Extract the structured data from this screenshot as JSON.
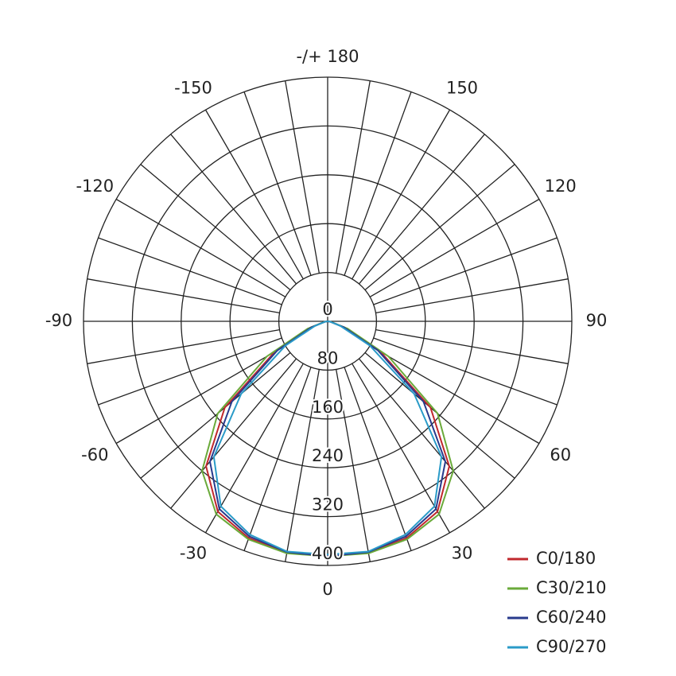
{
  "chart_data": {
    "type": "polar",
    "x": [
      -90,
      -80,
      -70,
      -60,
      -50,
      -40,
      -30,
      -20,
      -10,
      0,
      10,
      20,
      30,
      40,
      50,
      60,
      70,
      80,
      90
    ],
    "rlim": [
      0,
      400
    ],
    "rticks": [
      0,
      80,
      160,
      240,
      320,
      400
    ],
    "angle_ticks": [
      -150,
      -120,
      -90,
      -60,
      -30,
      0,
      30,
      60,
      90,
      120,
      150,
      {
        "value": 180,
        "label": "-/+ 180"
      }
    ],
    "legend": "lower right",
    "series": [
      {
        "name": "C0/180",
        "color": "#c0282d",
        "values": [
          0,
          5,
          30,
          100,
          220,
          310,
          360,
          378,
          385,
          384,
          385,
          378,
          360,
          310,
          220,
          100,
          30,
          5,
          0
        ]
      },
      {
        "name": "C30/210",
        "color": "#6aaa3a",
        "values": [
          0,
          6,
          35,
          115,
          235,
          320,
          365,
          380,
          386,
          385,
          386,
          380,
          365,
          320,
          235,
          115,
          35,
          6,
          0
        ]
      },
      {
        "name": "C60/240",
        "color": "#283a8c",
        "values": [
          0,
          5,
          28,
          95,
          205,
          300,
          355,
          375,
          384,
          385,
          384,
          375,
          355,
          300,
          205,
          95,
          28,
          5,
          0
        ]
      },
      {
        "name": "C90/270",
        "color": "#2a9bc8",
        "values": [
          0,
          4,
          22,
          80,
          185,
          290,
          350,
          372,
          383,
          382,
          383,
          372,
          350,
          290,
          185,
          80,
          22,
          4,
          0
        ]
      }
    ]
  }
}
